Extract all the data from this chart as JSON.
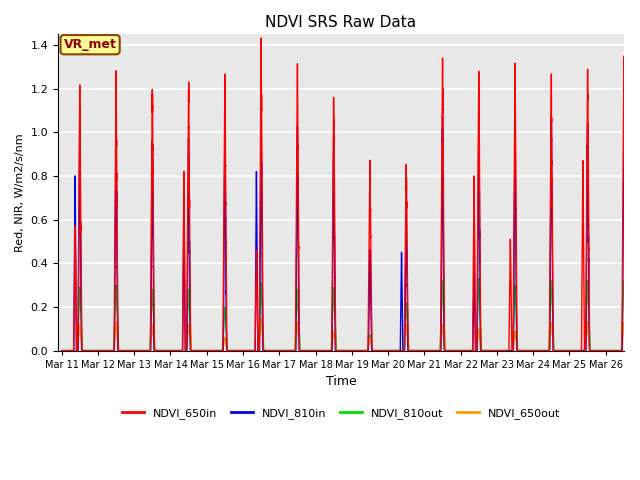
{
  "title": "NDVI SRS Raw Data",
  "xlabel": "Time",
  "ylabel": "Red, NIR, W/m2/s/nm",
  "annotation": "VR_met",
  "ylim": [
    0,
    1.45
  ],
  "yticks": [
    0.0,
    0.2,
    0.4,
    0.6,
    0.8,
    1.0,
    1.2,
    1.4
  ],
  "colors": {
    "NDVI_650in": "#ff0000",
    "NDVI_810in": "#0000dd",
    "NDVI_810out": "#00dd00",
    "NDVI_650out": "#ff9900"
  },
  "plot_bg_color": "#e8e8e8",
  "tick_labels": [
    "Mar 11",
    "Mar 12",
    "Mar 13",
    "Mar 14",
    "Mar 15",
    "Mar 16",
    "Mar 17",
    "Mar 18",
    "Mar 19",
    "Mar 20",
    "Mar 21",
    "Mar 22",
    "Mar 23",
    "Mar 24",
    "Mar 25",
    "Mar 26"
  ],
  "peaks_650in": [
    1.19,
    1.25,
    1.21,
    1.22,
    1.24,
    1.37,
    1.28,
    1.17,
    0.85,
    0.84,
    1.32,
    1.25,
    1.29,
    1.21,
    1.31,
    1.3
  ],
  "peaks_810in": [
    1.0,
    1.02,
    0.97,
    0.95,
    0.97,
    1.03,
    0.98,
    0.98,
    0.46,
    0.68,
    1.0,
    1.04,
    1.03,
    1.05,
    1.05,
    1.05
  ],
  "peaks_810out": [
    0.29,
    0.3,
    0.28,
    0.28,
    0.2,
    0.31,
    0.28,
    0.29,
    0.07,
    0.22,
    0.32,
    0.33,
    0.3,
    0.32,
    0.32,
    0.32
  ],
  "peaks_650out": [
    0.12,
    0.13,
    0.12,
    0.12,
    0.06,
    0.15,
    0.13,
    0.09,
    0.06,
    0.12,
    0.12,
    0.1,
    0.09,
    0.13,
    0.13,
    0.13
  ],
  "pre_peaks_650in": [
    0.57,
    0.0,
    0.0,
    0.82,
    0.0,
    0.46,
    0.0,
    0.0,
    0.0,
    0.0,
    0.0,
    0.8,
    0.51,
    0.0,
    0.87,
    0.0
  ],
  "pre_peaks_810in": [
    0.8,
    0.0,
    0.0,
    0.65,
    0.0,
    0.82,
    0.0,
    0.0,
    0.0,
    0.45,
    0.0,
    0.4,
    0.0,
    0.0,
    0.0,
    0.0
  ],
  "n_days": 16,
  "lw": 1.0
}
